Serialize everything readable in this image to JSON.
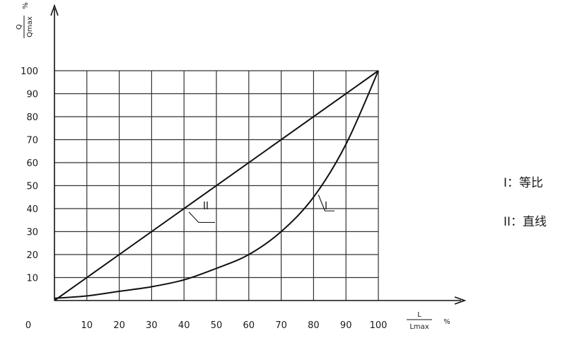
{
  "chart_data": {
    "type": "line",
    "xlim": [
      0,
      100
    ],
    "ylim": [
      0,
      100
    ],
    "x_ticks": [
      10,
      20,
      30,
      40,
      50,
      60,
      70,
      80,
      90,
      100
    ],
    "y_ticks": [
      10,
      20,
      30,
      40,
      50,
      60,
      70,
      80,
      90,
      100
    ],
    "origin_label": "0",
    "x_axis_label": {
      "num": "L",
      "den": "Lmax",
      "unit": "%"
    },
    "y_axis_label": {
      "num": "Q",
      "den": "Qmax",
      "unit": "%"
    },
    "grid": true,
    "series": [
      {
        "name": "I",
        "x": [
          0,
          10,
          20,
          30,
          40,
          50,
          60,
          70,
          80,
          90,
          100
        ],
        "y": [
          1,
          2,
          4,
          6,
          9,
          14,
          20,
          30,
          45,
          68,
          100
        ]
      },
      {
        "name": "II",
        "x": [
          0,
          100
        ],
        "y": [
          0,
          100
        ]
      }
    ]
  },
  "legend": [
    {
      "symbol": "I",
      "sep": "：",
      "text": "等比"
    },
    {
      "symbol": "II",
      "sep": "：",
      "text": "直线"
    }
  ]
}
